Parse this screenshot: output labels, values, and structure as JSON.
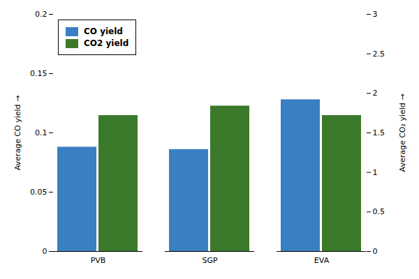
{
  "chart_data": {
    "type": "bar",
    "categories": [
      "PVB",
      "SGP",
      "EVA"
    ],
    "series": [
      {
        "name": "CO yield",
        "color": "#3a7fc1",
        "values": [
          0.088,
          0.086,
          0.128
        ]
      },
      {
        "name": "CO2 yield",
        "color": "#3a7a2a",
        "values": [
          1.72,
          1.84,
          1.72
        ],
        "axis": "y2"
      }
    ],
    "ylabel": "Average CO yield",
    "y2label": "Average CO₂ yield",
    "ylim": [
      0,
      0.2
    ],
    "yticks": [
      0,
      0.05,
      0.1,
      0.15,
      0.2
    ],
    "y2lim": [
      0,
      3.0
    ],
    "y2ticks": [
      0,
      0.5,
      1.0,
      1.5,
      2.0,
      2.5,
      3.0
    ],
    "legend": "upper left",
    "grid": false
  }
}
